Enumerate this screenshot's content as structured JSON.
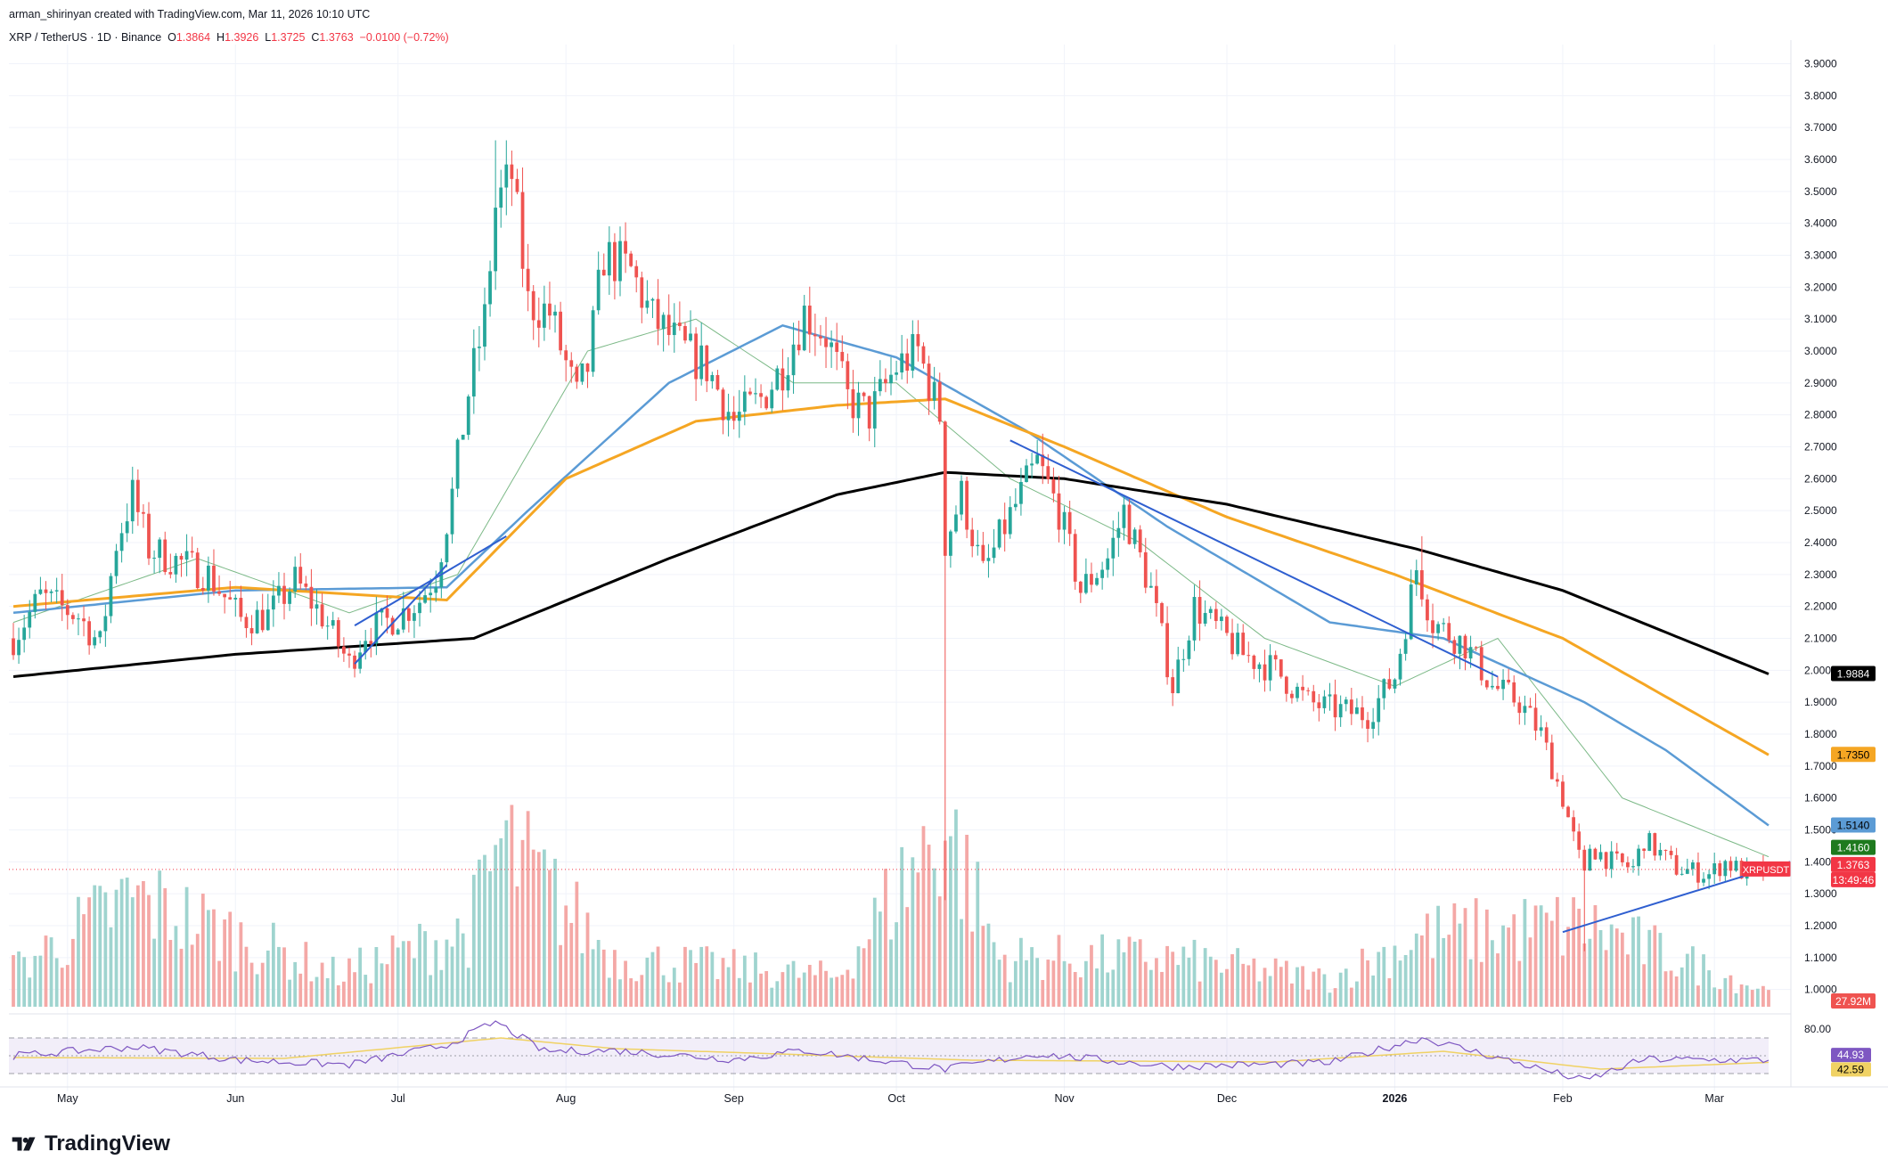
{
  "header": {
    "attribution": "arman_shirinyan created with TradingView.com, Mar 11, 2026 10:10 UTC",
    "symbol": "XRP / TetherUS · 1D · Binance",
    "open_label": "O",
    "open": "1.3864",
    "high_label": "H",
    "high": "1.3926",
    "low_label": "L",
    "low": "1.3725",
    "close_label": "C",
    "close": "1.3763",
    "change": "−0.0100 (−0.72%)"
  },
  "brand": {
    "name": "TradingView",
    "logo_icon": "tradingview-logo-icon"
  },
  "colors": {
    "up": "#26a69a",
    "down": "#ef5350",
    "vol_up": "#9fd4cf",
    "vol_down": "#f4a8a6",
    "sma20": "#7cb987",
    "sma50": "#5b9bd5",
    "sma100": "#f5a623",
    "sma200": "#000000",
    "trendline": "#2f5fd0",
    "rsi": "#7e57c2",
    "rsi_ma": "#f0d264"
  },
  "chart_data": [
    {
      "type": "candlestick",
      "title": "XRP / TetherUS · 1D · Binance",
      "x_ticks": [
        {
          "date": "2025-05-01",
          "label": "May"
        },
        {
          "date": "2025-06-01",
          "label": "Jun"
        },
        {
          "date": "2025-07-01",
          "label": "Jul"
        },
        {
          "date": "2025-08-01",
          "label": "Aug"
        },
        {
          "date": "2025-09-01",
          "label": "Sep"
        },
        {
          "date": "2025-10-01",
          "label": "Oct"
        },
        {
          "date": "2025-11-01",
          "label": "Nov"
        },
        {
          "date": "2025-12-01",
          "label": "Dec"
        },
        {
          "date": "2026-01-01",
          "label": "2026"
        },
        {
          "date": "2026-02-01",
          "label": "Feb"
        },
        {
          "date": "2026-03-01",
          "label": "Mar"
        }
      ],
      "x_range": [
        "2025-04-21",
        "2026-03-11"
      ],
      "y_ticks": [
        "1.0000",
        "1.1000",
        "1.2000",
        "1.3000",
        "1.4000",
        "1.5000",
        "1.6000",
        "1.7000",
        "1.8000",
        "1.9000",
        "2.0000",
        "2.1000",
        "2.2000",
        "2.3000",
        "2.4000",
        "2.5000",
        "2.6000",
        "2.7000",
        "2.8000",
        "2.9000",
        "3.0000",
        "3.1000",
        "3.2000",
        "3.3000",
        "3.4000",
        "3.5000",
        "3.6000",
        "3.7000",
        "3.8000",
        "3.9000"
      ],
      "ylim": [
        0.96,
        3.96
      ],
      "price_anchors": [
        {
          "date": "2025-04-21",
          "close": 2.1
        },
        {
          "date": "2025-04-26",
          "close": 2.23
        },
        {
          "date": "2025-05-03",
          "close": 2.17
        },
        {
          "date": "2025-05-07",
          "close": 2.08
        },
        {
          "date": "2025-05-10",
          "close": 2.4
        },
        {
          "date": "2025-05-13",
          "close": 2.55
        },
        {
          "date": "2025-05-16",
          "close": 2.38
        },
        {
          "date": "2025-05-20",
          "close": 2.35
        },
        {
          "date": "2025-05-27",
          "close": 2.3
        },
        {
          "date": "2025-06-02",
          "close": 2.16
        },
        {
          "date": "2025-06-07",
          "close": 2.17
        },
        {
          "date": "2025-06-12",
          "close": 2.28
        },
        {
          "date": "2025-06-17",
          "close": 2.17
        },
        {
          "date": "2025-06-22",
          "close": 2.02
        },
        {
          "date": "2025-06-25",
          "close": 2.12
        },
        {
          "date": "2025-07-01",
          "close": 2.17
        },
        {
          "date": "2025-07-05",
          "close": 2.22
        },
        {
          "date": "2025-07-08",
          "close": 2.3
        },
        {
          "date": "2025-07-11",
          "close": 2.55
        },
        {
          "date": "2025-07-14",
          "close": 2.87
        },
        {
          "date": "2025-07-17",
          "close": 3.1
        },
        {
          "date": "2025-07-19",
          "close": 3.45
        },
        {
          "date": "2025-07-22",
          "close": 3.55
        },
        {
          "date": "2025-07-25",
          "close": 3.15
        },
        {
          "date": "2025-07-29",
          "close": 3.12
        },
        {
          "date": "2025-08-03",
          "close": 2.85
        },
        {
          "date": "2025-08-05",
          "close": 2.95
        },
        {
          "date": "2025-08-08",
          "close": 3.3
        },
        {
          "date": "2025-08-13",
          "close": 3.25
        },
        {
          "date": "2025-08-17",
          "close": 3.1
        },
        {
          "date": "2025-08-23",
          "close": 3.0
        },
        {
          "date": "2025-08-27",
          "close": 2.95
        },
        {
          "date": "2025-09-01",
          "close": 2.78
        },
        {
          "date": "2025-09-06",
          "close": 2.85
        },
        {
          "date": "2025-09-10",
          "close": 2.95
        },
        {
          "date": "2025-09-14",
          "close": 3.12
        },
        {
          "date": "2025-09-18",
          "close": 3.05
        },
        {
          "date": "2025-09-22",
          "close": 2.85
        },
        {
          "date": "2025-09-26",
          "close": 2.8
        },
        {
          "date": "2025-10-01",
          "close": 2.95
        },
        {
          "date": "2025-10-05",
          "close": 3.0
        },
        {
          "date": "2025-10-09",
          "close": 2.8
        },
        {
          "date": "2025-10-10",
          "close": 2.4
        },
        {
          "date": "2025-10-13",
          "close": 2.55
        },
        {
          "date": "2025-10-17",
          "close": 2.3
        },
        {
          "date": "2025-10-21",
          "close": 2.45
        },
        {
          "date": "2025-10-27",
          "close": 2.65
        },
        {
          "date": "2025-10-31",
          "close": 2.5
        },
        {
          "date": "2025-11-04",
          "close": 2.25
        },
        {
          "date": "2025-11-09",
          "close": 2.35
        },
        {
          "date": "2025-11-12",
          "close": 2.5
        },
        {
          "date": "2025-11-17",
          "close": 2.25
        },
        {
          "date": "2025-11-21",
          "close": 1.95
        },
        {
          "date": "2025-11-25",
          "close": 2.2
        },
        {
          "date": "2025-12-01",
          "close": 2.1
        },
        {
          "date": "2025-12-04",
          "close": 2.05
        },
        {
          "date": "2025-12-10",
          "close": 2.0
        },
        {
          "date": "2025-12-16",
          "close": 1.9
        },
        {
          "date": "2025-12-20",
          "close": 1.88
        },
        {
          "date": "2025-12-27",
          "close": 1.86
        },
        {
          "date": "2026-01-01",
          "close": 1.98
        },
        {
          "date": "2026-01-05",
          "close": 2.32
        },
        {
          "date": "2026-01-08",
          "close": 2.15
        },
        {
          "date": "2026-01-14",
          "close": 2.08
        },
        {
          "date": "2026-01-19",
          "close": 1.95
        },
        {
          "date": "2026-01-24",
          "close": 1.9
        },
        {
          "date": "2026-01-28",
          "close": 1.8
        },
        {
          "date": "2026-02-01",
          "close": 1.6
        },
        {
          "date": "2026-02-05",
          "close": 1.35
        },
        {
          "date": "2026-02-06",
          "close": 1.45
        },
        {
          "date": "2026-02-10",
          "close": 1.4
        },
        {
          "date": "2026-02-14",
          "close": 1.38
        },
        {
          "date": "2026-02-16",
          "close": 1.47
        },
        {
          "date": "2026-02-22",
          "close": 1.38
        },
        {
          "date": "2026-02-28",
          "close": 1.36
        },
        {
          "date": "2026-03-03",
          "close": 1.4
        },
        {
          "date": "2026-03-07",
          "close": 1.36
        },
        {
          "date": "2026-03-11",
          "close": 1.3763
        }
      ],
      "price_notable_wicks": [
        {
          "date": "2025-07-19",
          "high": 3.66
        },
        {
          "date": "2025-10-10",
          "low": 1.28
        },
        {
          "date": "2026-01-06",
          "high": 2.42
        },
        {
          "date": "2026-02-05",
          "low": 1.12
        }
      ],
      "moving_averages": [
        {
          "name": "SMA20",
          "anchors": [
            {
              "date": "2025-04-21",
              "value": 2.15
            },
            {
              "date": "2025-05-25",
              "value": 2.35
            },
            {
              "date": "2025-06-22",
              "value": 2.18
            },
            {
              "date": "2025-07-12",
              "value": 2.3
            },
            {
              "date": "2025-08-05",
              "value": 3.0
            },
            {
              "date": "2025-08-25",
              "value": 3.1
            },
            {
              "date": "2025-09-12",
              "value": 2.9
            },
            {
              "date": "2025-10-01",
              "value": 2.9
            },
            {
              "date": "2025-10-22",
              "value": 2.6
            },
            {
              "date": "2025-11-15",
              "value": 2.4
            },
            {
              "date": "2025-12-08",
              "value": 2.1
            },
            {
              "date": "2026-01-01",
              "value": 1.95
            },
            {
              "date": "2026-01-20",
              "value": 2.1
            },
            {
              "date": "2026-02-12",
              "value": 1.6
            },
            {
              "date": "2026-03-11",
              "value": 1.416
            }
          ]
        },
        {
          "name": "SMA50",
          "anchors": [
            {
              "date": "2025-04-21",
              "value": 2.18
            },
            {
              "date": "2025-06-01",
              "value": 2.25
            },
            {
              "date": "2025-07-10",
              "value": 2.26
            },
            {
              "date": "2025-07-25",
              "value": 2.5
            },
            {
              "date": "2025-08-20",
              "value": 2.9
            },
            {
              "date": "2025-09-10",
              "value": 3.08
            },
            {
              "date": "2025-10-01",
              "value": 2.98
            },
            {
              "date": "2025-10-25",
              "value": 2.75
            },
            {
              "date": "2025-11-20",
              "value": 2.45
            },
            {
              "date": "2025-12-20",
              "value": 2.15
            },
            {
              "date": "2026-01-10",
              "value": 2.1
            },
            {
              "date": "2026-02-05",
              "value": 1.9
            },
            {
              "date": "2026-02-20",
              "value": 1.75
            },
            {
              "date": "2026-03-11",
              "value": 1.514
            }
          ]
        },
        {
          "name": "SMA100",
          "anchors": [
            {
              "date": "2025-04-21",
              "value": 2.2
            },
            {
              "date": "2025-06-01",
              "value": 2.26
            },
            {
              "date": "2025-07-10",
              "value": 2.22
            },
            {
              "date": "2025-08-01",
              "value": 2.6
            },
            {
              "date": "2025-08-25",
              "value": 2.78
            },
            {
              "date": "2025-09-20",
              "value": 2.83
            },
            {
              "date": "2025-10-10",
              "value": 2.85
            },
            {
              "date": "2025-11-01",
              "value": 2.7
            },
            {
              "date": "2025-12-01",
              "value": 2.48
            },
            {
              "date": "2026-01-01",
              "value": 2.3
            },
            {
              "date": "2026-02-01",
              "value": 2.1
            },
            {
              "date": "2026-03-11",
              "value": 1.735
            }
          ]
        },
        {
          "name": "SMA200",
          "anchors": [
            {
              "date": "2025-04-21",
              "value": 1.98
            },
            {
              "date": "2025-06-01",
              "value": 2.05
            },
            {
              "date": "2025-07-15",
              "value": 2.1
            },
            {
              "date": "2025-08-20",
              "value": 2.35
            },
            {
              "date": "2025-09-20",
              "value": 2.55
            },
            {
              "date": "2025-10-10",
              "value": 2.62
            },
            {
              "date": "2025-11-01",
              "value": 2.6
            },
            {
              "date": "2025-12-01",
              "value": 2.52
            },
            {
              "date": "2026-01-05",
              "value": 2.38
            },
            {
              "date": "2026-02-01",
              "value": 2.25
            },
            {
              "date": "2026-03-11",
              "value": 1.9884
            }
          ]
        }
      ],
      "trendlines": [
        [
          {
            "date": "2025-06-23",
            "value": 2.02
          },
          {
            "date": "2025-07-10",
            "value": 2.33
          }
        ],
        [
          {
            "date": "2025-06-23",
            "value": 2.14
          },
          {
            "date": "2025-07-21",
            "value": 2.42
          }
        ],
        [
          {
            "date": "2025-10-22",
            "value": 2.72
          },
          {
            "date": "2026-01-20",
            "value": 1.98
          }
        ],
        [
          {
            "date": "2026-02-01",
            "value": 1.18
          },
          {
            "date": "2026-03-15",
            "value": 1.4
          }
        ]
      ],
      "price_labels": [
        {
          "text": "1.9884",
          "bg": "#000000",
          "fg": "#ffffff",
          "value": 1.9884
        },
        {
          "text": "1.7350",
          "bg": "#f5a623",
          "fg": "#000000",
          "value": 1.735
        },
        {
          "text": "1.5140",
          "bg": "#5b9bd5",
          "fg": "#000000",
          "value": 1.514
        },
        {
          "text": "1.4160",
          "bg": "#1e7a1e",
          "fg": "#ffffff",
          "value": 1.416
        },
        {
          "text": "1.3763",
          "bg": "#f23645",
          "fg": "#ffffff",
          "value": 1.3763
        },
        {
          "text": "13:49:46",
          "bg": "#f23645",
          "fg": "#ffffff",
          "value": 1.3763
        }
      ],
      "last_price_tag": {
        "text": "XRPUSDT",
        "value": 1.3763
      }
    },
    {
      "type": "bar",
      "title": "Volume",
      "last_value_label": "27.92M",
      "max_volume_m": 340,
      "volume_anchors_m": [
        {
          "date": "2025-04-21",
          "v": 70
        },
        {
          "date": "2025-05-13",
          "v": 200
        },
        {
          "date": "2025-06-20",
          "v": 60
        },
        {
          "date": "2025-07-14",
          "v": 140
        },
        {
          "date": "2025-07-20",
          "v": 300
        },
        {
          "date": "2025-08-10",
          "v": 90
        },
        {
          "date": "2025-09-20",
          "v": 55
        },
        {
          "date": "2025-10-10",
          "v": 340
        },
        {
          "date": "2025-10-20",
          "v": 90
        },
        {
          "date": "2025-11-20",
          "v": 90
        },
        {
          "date": "2025-12-20",
          "v": 50
        },
        {
          "date": "2026-01-06",
          "v": 130
        },
        {
          "date": "2026-02-05",
          "v": 150
        },
        {
          "date": "2026-03-11",
          "v": 28
        }
      ]
    },
    {
      "type": "line",
      "title": "RSI",
      "y_ticks": [
        "80.00"
      ],
      "ylim": [
        20,
        90
      ],
      "bands": [
        30,
        50,
        70
      ],
      "values_labels": [
        {
          "text": "44.93",
          "value": 44.93,
          "bg": "#7e57c2",
          "fg": "#ffffff"
        },
        {
          "text": "42.59",
          "value": 42.59,
          "bg": "#f0d264",
          "fg": "#000000"
        }
      ],
      "rsi_anchors": [
        {
          "date": "2025-04-21",
          "v": 50
        },
        {
          "date": "2025-05-13",
          "v": 60
        },
        {
          "date": "2025-06-02",
          "v": 45
        },
        {
          "date": "2025-06-22",
          "v": 40
        },
        {
          "date": "2025-07-10",
          "v": 62
        },
        {
          "date": "2025-07-19",
          "v": 88
        },
        {
          "date": "2025-07-28",
          "v": 55
        },
        {
          "date": "2025-08-10",
          "v": 56
        },
        {
          "date": "2025-09-01",
          "v": 46
        },
        {
          "date": "2025-09-14",
          "v": 56
        },
        {
          "date": "2025-10-10",
          "v": 35
        },
        {
          "date": "2025-10-27",
          "v": 52
        },
        {
          "date": "2025-11-21",
          "v": 38
        },
        {
          "date": "2025-12-20",
          "v": 42
        },
        {
          "date": "2026-01-06",
          "v": 70
        },
        {
          "date": "2026-01-25",
          "v": 40
        },
        {
          "date": "2026-02-05",
          "v": 22
        },
        {
          "date": "2026-02-16",
          "v": 46
        },
        {
          "date": "2026-03-11",
          "v": 44.93
        }
      ],
      "rsi_ma_anchors": [
        {
          "date": "2025-04-21",
          "v": 48
        },
        {
          "date": "2025-06-10",
          "v": 47
        },
        {
          "date": "2025-07-20",
          "v": 70
        },
        {
          "date": "2025-08-10",
          "v": 58
        },
        {
          "date": "2025-10-15",
          "v": 45
        },
        {
          "date": "2025-12-10",
          "v": 43
        },
        {
          "date": "2026-01-10",
          "v": 55
        },
        {
          "date": "2026-02-08",
          "v": 35
        },
        {
          "date": "2026-03-11",
          "v": 42.59
        }
      ]
    }
  ]
}
